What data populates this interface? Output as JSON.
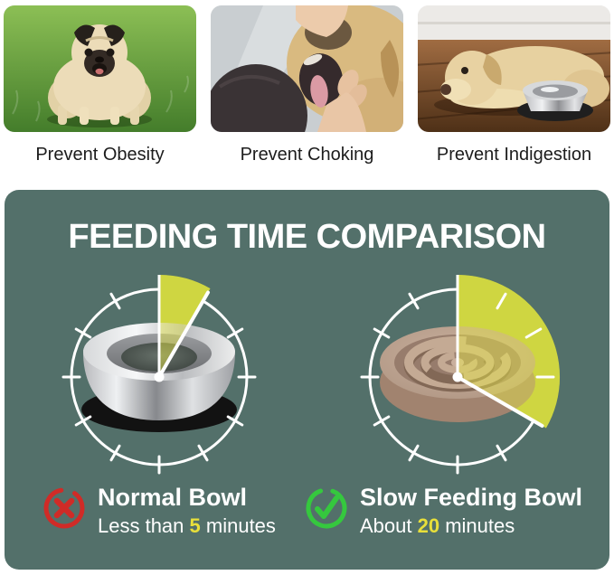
{
  "benefits": [
    {
      "caption": "Prevent Obesity"
    },
    {
      "caption": "Prevent Choking"
    },
    {
      "caption": "Prevent Indigestion"
    }
  ],
  "comparison": {
    "title": "FEEDING TIME COMPARISON",
    "bowls": [
      {
        "name": "Normal Bowl",
        "time_prefix": "Less than ",
        "time_value": "5",
        "time_suffix": " minutes",
        "minutes": 5,
        "verdict": "cross"
      },
      {
        "name": "Slow Feeding Bowl",
        "time_prefix": "About ",
        "time_value": "20",
        "time_suffix": " minutes",
        "minutes": 20,
        "verdict": "check"
      }
    ]
  },
  "colors": {
    "panel_bg": "#53706a",
    "wedge": "#b9c53c",
    "wedge_overlay": "rgba(236,235,70,0.45)",
    "highlight_yellow": "#e8df3a",
    "cross_red": "#d02b27",
    "check_green": "#35c83e",
    "text_light": "#ffffff",
    "caption_text": "#1c1c1c"
  }
}
